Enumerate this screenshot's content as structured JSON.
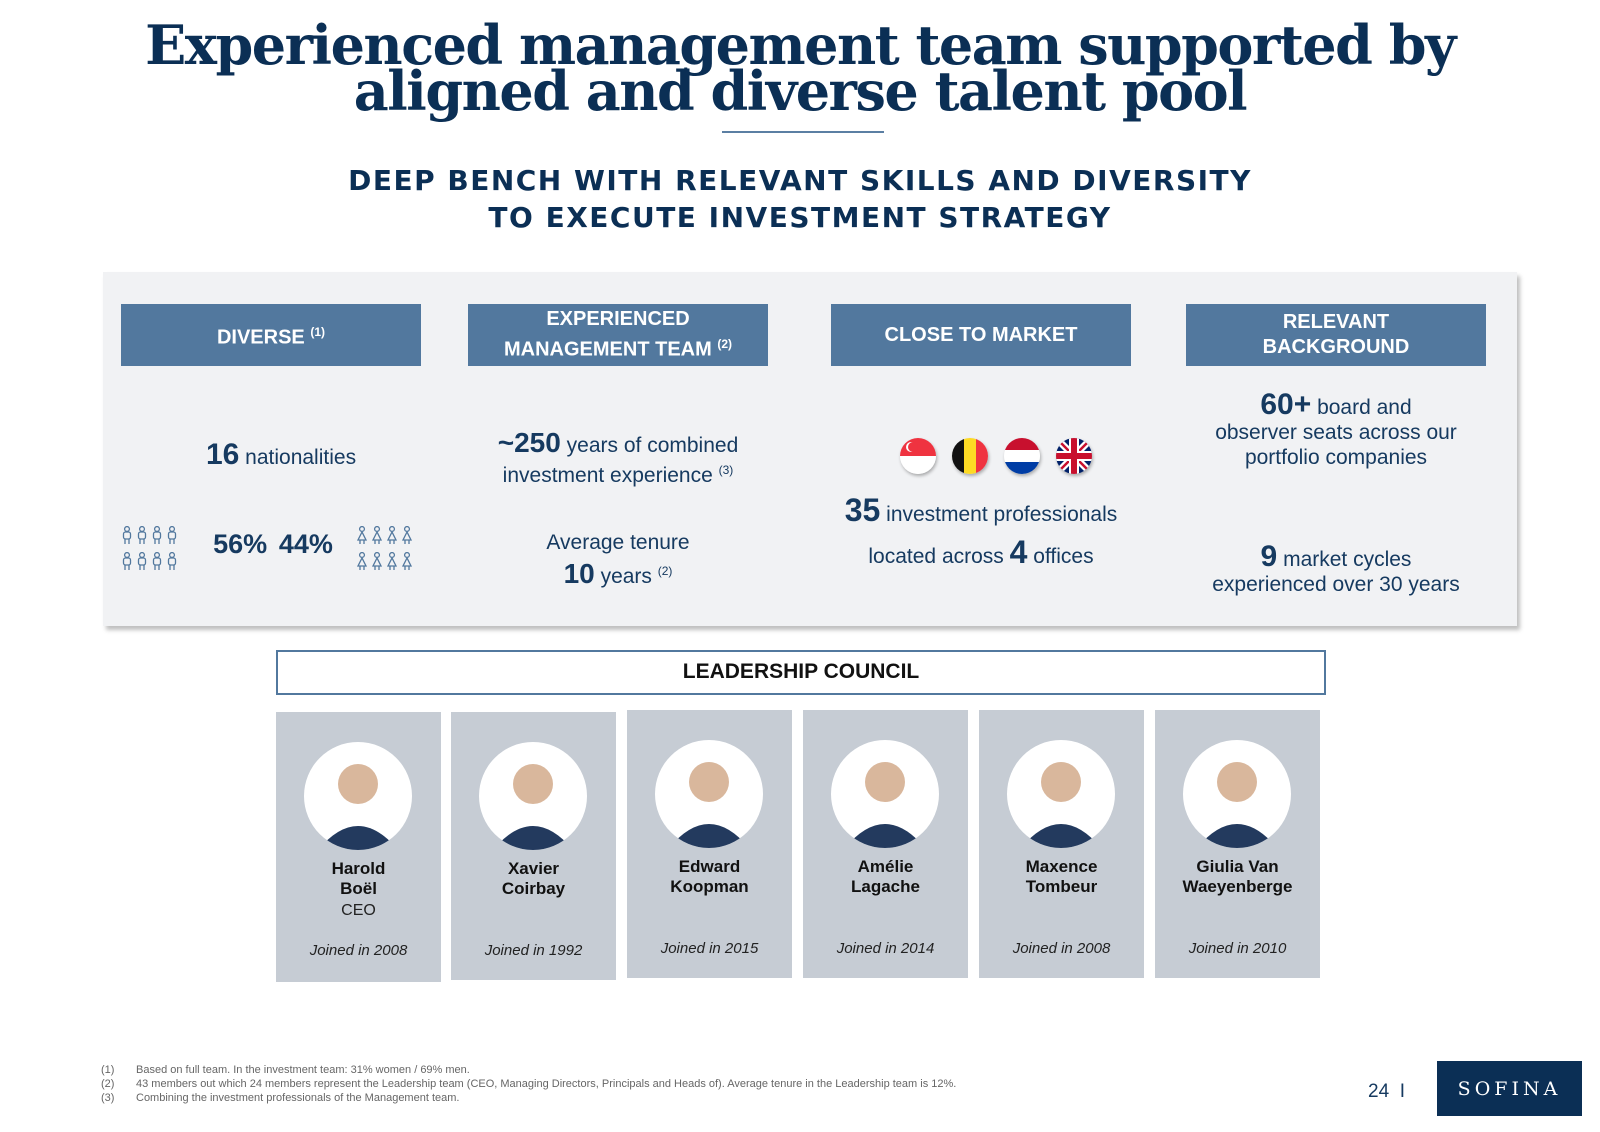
{
  "title": {
    "line1": "Experienced management team supported by",
    "line2": "aligned and diverse talent pool"
  },
  "subtitle": {
    "line1": "DEEP BENCH WITH RELEVANT SKILLS AND DIVERSITY",
    "line2": "TO EXECUTE INVESTMENT STRATEGY"
  },
  "columns": {
    "diverse": {
      "header": "DIVERSE",
      "header_note": "(1)",
      "nationalities_value": "16",
      "nationalities_label": "nationalities",
      "men_pct": "56%",
      "women_pct": "44%",
      "men_icon": "male-person-icon",
      "women_icon": "female-person-icon"
    },
    "experienced": {
      "header_line1": "EXPERIENCED",
      "header_line2": "MANAGEMENT TEAM",
      "header_note": "(2)",
      "years_value": "~250",
      "years_label_1": "years of combined",
      "years_label_2": "investment experience",
      "years_note": "(3)",
      "tenure_label": "Average tenure",
      "tenure_value": "10",
      "tenure_unit": "years",
      "tenure_note": "(2)"
    },
    "market": {
      "header": "CLOSE TO MARKET",
      "flags": [
        "singapore-flag-icon",
        "belgium-flag-icon",
        "netherlands-flag-icon",
        "uk-flag-icon"
      ],
      "professionals_value": "35",
      "professionals_label": "investment professionals",
      "offices_prefix": "located across",
      "offices_value": "4",
      "offices_suffix": "offices"
    },
    "background": {
      "header_line1": "RELEVANT",
      "header_line2": "BACKGROUND",
      "seats_value": "60+",
      "seats_label_1": "board and",
      "seats_label_2": "observer seats across our",
      "seats_label_3": "portfolio companies",
      "cycles_value": "9",
      "cycles_label_1": "market cycles",
      "cycles_label_2": "experienced over 30 years"
    }
  },
  "council": {
    "title": "LEADERSHIP COUNCIL",
    "members": [
      {
        "name1": "Harold",
        "name2": "Boël",
        "role": "CEO",
        "joined": "Joined in 2008"
      },
      {
        "name1": "Xavier",
        "name2": "Coirbay",
        "role": "",
        "joined": "Joined in 1992"
      },
      {
        "name1": "Edward",
        "name2": "Koopman",
        "role": "",
        "joined": "Joined in 2015"
      },
      {
        "name1": "Amélie",
        "name2": "Lagache",
        "role": "",
        "joined": "Joined in 2014"
      },
      {
        "name1": "Maxence",
        "name2": "Tombeur",
        "role": "",
        "joined": "Joined in 2008"
      },
      {
        "name1": "Giulia Van",
        "name2": "Waeyenberge",
        "role": "",
        "joined": "Joined in 2010"
      }
    ]
  },
  "footnotes": [
    {
      "num": "(1)",
      "text": "Based on full team. In the investment team: 31% women / 69% men."
    },
    {
      "num": "(2)",
      "text": "43 members out which 24 members represent the Leadership team (CEO, Managing Directors, Principals and Heads of). Average tenure in the Leadership team is 12%."
    },
    {
      "num": "(3)",
      "text": "Combining the investment professionals of the Management team."
    }
  ],
  "page_number": "24",
  "page_separator": "I",
  "logo": "SOFINA",
  "colors": {
    "navy": "#0b2f55",
    "header_blue": "#52789e",
    "panel_bg": "#f1f2f4",
    "card_bg": "#c6ccd4"
  }
}
